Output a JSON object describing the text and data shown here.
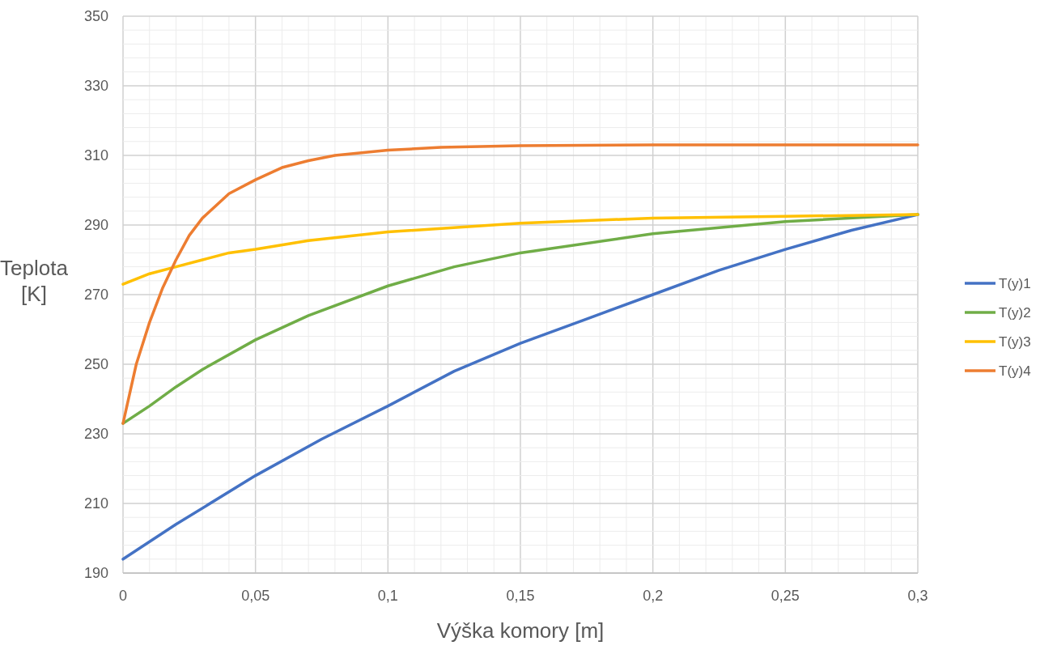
{
  "chart_data": {
    "type": "line",
    "xlabel": "Výška komory [m]",
    "ylabel": "Teplota [K]",
    "xlim": [
      0,
      0.3
    ],
    "ylim": [
      190,
      350
    ],
    "xticks": [
      {
        "value": 0,
        "label": "0"
      },
      {
        "value": 0.01,
        "label": null
      },
      {
        "value": 0.02,
        "label": null
      },
      {
        "value": 0.03,
        "label": null
      },
      {
        "value": 0.04,
        "label": null
      },
      {
        "value": 0.05,
        "label": "0,05"
      },
      {
        "value": 0.06,
        "label": null
      },
      {
        "value": 0.07,
        "label": null
      },
      {
        "value": 0.08,
        "label": null
      },
      {
        "value": 0.09,
        "label": null
      },
      {
        "value": 0.1,
        "label": "0,1"
      },
      {
        "value": 0.11,
        "label": null
      },
      {
        "value": 0.12,
        "label": null
      },
      {
        "value": 0.13,
        "label": null
      },
      {
        "value": 0.14,
        "label": null
      },
      {
        "value": 0.15,
        "label": "0,15"
      },
      {
        "value": 0.16,
        "label": null
      },
      {
        "value": 0.17,
        "label": null
      },
      {
        "value": 0.18,
        "label": null
      },
      {
        "value": 0.19,
        "label": null
      },
      {
        "value": 0.2,
        "label": "0,2"
      },
      {
        "value": 0.21,
        "label": null
      },
      {
        "value": 0.22,
        "label": null
      },
      {
        "value": 0.23,
        "label": null
      },
      {
        "value": 0.24,
        "label": null
      },
      {
        "value": 0.25,
        "label": "0,25"
      },
      {
        "value": 0.26,
        "label": null
      },
      {
        "value": 0.27,
        "label": null
      },
      {
        "value": 0.28,
        "label": null
      },
      {
        "value": 0.29,
        "label": null
      },
      {
        "value": 0.3,
        "label": "0,3"
      }
    ],
    "yticks": [
      190,
      {
        "value": 194,
        "label": null
      },
      {
        "value": 198,
        "label": null
      },
      {
        "value": 202,
        "label": null
      },
      {
        "value": 206,
        "label": null
      },
      210,
      {
        "value": 214,
        "label": null
      },
      {
        "value": 218,
        "label": null
      },
      {
        "value": 222,
        "label": null
      },
      {
        "value": 226,
        "label": null
      },
      230,
      {
        "value": 234,
        "label": null
      },
      {
        "value": 238,
        "label": null
      },
      {
        "value": 242,
        "label": null
      },
      {
        "value": 246,
        "label": null
      },
      250,
      {
        "value": 254,
        "label": null
      },
      {
        "value": 258,
        "label": null
      },
      {
        "value": 262,
        "label": null
      },
      {
        "value": 266,
        "label": null
      },
      270,
      {
        "value": 274,
        "label": null
      },
      {
        "value": 278,
        "label": null
      },
      {
        "value": 282,
        "label": null
      },
      {
        "value": 286,
        "label": null
      },
      290,
      {
        "value": 294,
        "label": null
      },
      {
        "value": 298,
        "label": null
      },
      {
        "value": 302,
        "label": null
      },
      {
        "value": 306,
        "label": null
      },
      310,
      {
        "value": 314,
        "label": null
      },
      {
        "value": 318,
        "label": null
      },
      {
        "value": 322,
        "label": null
      },
      {
        "value": 326,
        "label": null
      },
      330,
      {
        "value": 334,
        "label": null
      },
      {
        "value": 338,
        "label": null
      },
      {
        "value": 342,
        "label": null
      },
      {
        "value": 346,
        "label": null
      },
      350
    ],
    "grid": true,
    "legend": "right",
    "marker": "none",
    "line_style": "solid",
    "series": [
      {
        "name": "T(y)1",
        "color": "#4472c4",
        "x": [
          0,
          0.02,
          0.05,
          0.075,
          0.1,
          0.125,
          0.15,
          0.175,
          0.2,
          0.225,
          0.25,
          0.275,
          0.3
        ],
        "values": [
          194,
          204,
          218,
          228.5,
          238,
          248,
          256,
          263,
          270,
          277,
          283,
          288.5,
          293
        ]
      },
      {
        "name": "T(y)2",
        "color": "#70ad47",
        "x": [
          0,
          0.01,
          0.02,
          0.03,
          0.05,
          0.07,
          0.1,
          0.125,
          0.15,
          0.2,
          0.25,
          0.3
        ],
        "values": [
          233,
          238,
          243.5,
          248.5,
          257,
          264,
          272.5,
          278,
          282,
          287.5,
          291,
          293
        ]
      },
      {
        "name": "T(y)3",
        "color": "#ffc000",
        "x": [
          0,
          0.01,
          0.02,
          0.03,
          0.04,
          0.05,
          0.07,
          0.1,
          0.15,
          0.2,
          0.25,
          0.3
        ],
        "values": [
          273,
          276,
          278,
          280,
          282,
          283,
          285.5,
          288,
          290.5,
          292,
          292.5,
          293
        ]
      },
      {
        "name": "T(y)4",
        "color": "#ed7d31",
        "x": [
          0,
          0.005,
          0.01,
          0.015,
          0.02,
          0.025,
          0.03,
          0.04,
          0.05,
          0.06,
          0.07,
          0.08,
          0.1,
          0.12,
          0.15,
          0.2,
          0.3
        ],
        "values": [
          233,
          250,
          262,
          272,
          280,
          287,
          292,
          299,
          303,
          306.5,
          308.5,
          310,
          311.5,
          312.3,
          312.8,
          313,
          313
        ]
      }
    ]
  }
}
